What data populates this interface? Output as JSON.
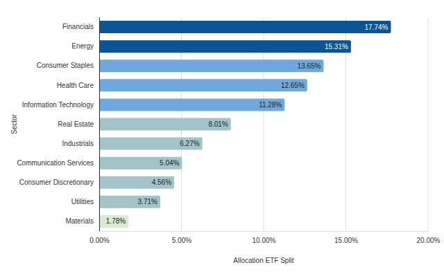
{
  "chart_data": {
    "type": "bar",
    "orientation": "horizontal",
    "x_label": "Allocation ETF Split",
    "y_label": "Sector",
    "categories": [
      "Financials",
      "Energy",
      "Consumer Staples",
      "Health Care",
      "Information Technology",
      "Real Estate",
      "Industrials",
      "Communication Services",
      "Consumer Discretionary",
      "Utilities",
      "Materials"
    ],
    "values": [
      17.74,
      15.31,
      13.65,
      12.65,
      11.28,
      8.01,
      6.27,
      5.04,
      4.56,
      3.71,
      1.78
    ],
    "value_labels": [
      "17.74%",
      "15.31%",
      "13.65%",
      "12.65%",
      "11.28%",
      "8.01%",
      "6.27%",
      "5.04%",
      "4.56%",
      "3.71%",
      "1.78%"
    ],
    "colors": [
      "#0b5394",
      "#0b5394",
      "#6fa8dc",
      "#6fa8dc",
      "#6fa8dc",
      "#a2c4c9",
      "#a2c4c9",
      "#a2c4c9",
      "#a2c4c9",
      "#a2c4c9",
      "#d9ead3"
    ],
    "xlim": [
      0,
      20
    ],
    "xticks": [
      {
        "value": 0,
        "label": "0.00%"
      },
      {
        "value": 5,
        "label": "5.00%"
      },
      {
        "value": 10,
        "label": "10.00%"
      },
      {
        "value": 15,
        "label": "15.00%"
      },
      {
        "value": 20,
        "label": "20.00%"
      }
    ],
    "grid": true,
    "data_labels": true
  }
}
